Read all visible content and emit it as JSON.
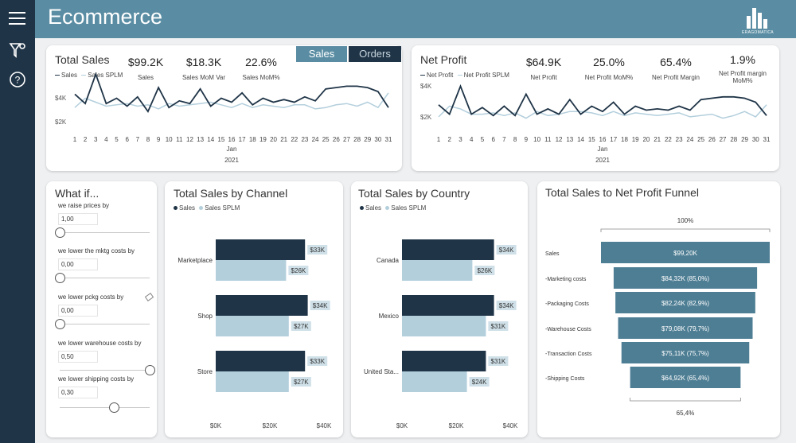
{
  "header": {
    "title": "Ecommerce",
    "logo_text": "ERAGOMATICA"
  },
  "sidebar": {
    "icons": [
      "menu-icon",
      "filter-icon",
      "help-icon"
    ]
  },
  "toggle": {
    "sales_label": "Sales",
    "orders_label": "Orders"
  },
  "total_sales": {
    "title": "Total Sales",
    "legend": [
      "Sales",
      "Sales SPLM"
    ],
    "kpis": [
      {
        "value": "$99.2K",
        "label": "Sales"
      },
      {
        "value": "$18.3K",
        "label": "Sales MoM Var"
      },
      {
        "value": "22.6%",
        "label": "Sales MoM%"
      }
    ],
    "y_ticks": [
      "$4K",
      "$2K"
    ],
    "x_month": "Jan",
    "x_year": "2021"
  },
  "net_profit": {
    "title": "Net Profit",
    "legend": [
      "Net Profit",
      "Net Profit SPLM"
    ],
    "kpis": [
      {
        "value": "$64.9K",
        "label": "Net Profit"
      },
      {
        "value": "25.0%",
        "label": "Net Profit MoM%"
      },
      {
        "value": "65.4%",
        "label": "Net Profit Margin"
      },
      {
        "value": "1.9%",
        "label": "Net Profit margin MoM%"
      }
    ],
    "y_ticks": [
      "$4K",
      "$2K"
    ],
    "x_month": "Jan",
    "x_year": "2021"
  },
  "what_if": {
    "title": "What if...",
    "sliders": [
      {
        "label": "we raise prices by",
        "value": "1,00",
        "level": 0
      },
      {
        "label": "we lower the mktg costs by",
        "value": "0,00",
        "level": 0
      },
      {
        "label": "we lower pckg costs by",
        "value": "0,00",
        "level": 0
      },
      {
        "label": "we lower warehouse costs by",
        "value": "0,50",
        "level": 1
      },
      {
        "label": "we lower shipping costs by",
        "value": "0,30",
        "level": 0.6
      }
    ]
  },
  "channel_chart": {
    "title": "Total Sales by Channel",
    "legend": [
      "Sales",
      "Sales SPLM"
    ],
    "x_ticks": [
      "$0K",
      "$20K",
      "$40K"
    ]
  },
  "country_chart": {
    "title": "Total Sales by Country",
    "legend": [
      "Sales",
      "Sales SPLM"
    ],
    "x_ticks": [
      "$0K",
      "$20K",
      "$40K"
    ]
  },
  "funnel": {
    "title": "Total Sales to Net Profit Funnel",
    "top_pct": "100%",
    "bottom_pct": "65,4%"
  },
  "colors": {
    "dark": "#1f3447",
    "light": "#b3cfdc",
    "accent": "#5a8da3",
    "funnel": "#4e7e94"
  },
  "chart_data": [
    {
      "type": "line",
      "title": "Total Sales",
      "x": [
        1,
        2,
        3,
        4,
        5,
        6,
        7,
        8,
        9,
        10,
        11,
        12,
        13,
        14,
        15,
        16,
        17,
        18,
        19,
        20,
        21,
        22,
        23,
        24,
        25,
        26,
        27,
        28,
        29,
        30,
        31
      ],
      "xlabel": "Jan 2021",
      "ylim": [
        1000,
        5000
      ],
      "series": [
        {
          "name": "Sales",
          "values": [
            3600,
            2900,
            5100,
            2900,
            3300,
            2700,
            3400,
            2300,
            4100,
            2600,
            3100,
            2900,
            4000,
            2700,
            3300,
            3000,
            3700,
            2800,
            3300,
            3000,
            3200,
            3000,
            3400,
            3100,
            4000,
            4100,
            4200,
            4200,
            4100,
            3800,
            2600
          ]
        },
        {
          "name": "Sales SPLM",
          "values": [
            2600,
            3300,
            3000,
            2700,
            2800,
            2900,
            2700,
            2800,
            2500,
            2900,
            2700,
            2800,
            2900,
            3000,
            2800,
            2600,
            2900,
            2600,
            2800,
            2700,
            2600,
            2800,
            2800,
            2500,
            2600,
            2800,
            2900,
            2700,
            3000,
            2600,
            3700
          ]
        }
      ]
    },
    {
      "type": "line",
      "title": "Net Profit",
      "x": [
        1,
        2,
        3,
        4,
        5,
        6,
        7,
        8,
        9,
        10,
        11,
        12,
        13,
        14,
        15,
        16,
        17,
        18,
        19,
        20,
        21,
        22,
        23,
        24,
        25,
        26,
        27,
        28,
        29,
        30,
        31
      ],
      "xlabel": "Jan 2021",
      "ylim": [
        500,
        4500
      ],
      "series": [
        {
          "name": "Net Profit",
          "values": [
            2300,
            1600,
            3700,
            1600,
            2100,
            1500,
            2200,
            1500,
            3100,
            1600,
            2000,
            1600,
            2700,
            1600,
            2200,
            1800,
            2500,
            1600,
            2200,
            1900,
            2000,
            1900,
            2200,
            1900,
            2700,
            2800,
            2900,
            2900,
            2800,
            2500,
            1500
          ]
        },
        {
          "name": "Net Profit SPLM",
          "values": [
            1400,
            2200,
            2000,
            1600,
            1600,
            1700,
            1500,
            1700,
            1300,
            1800,
            1500,
            1600,
            1800,
            1800,
            1700,
            1500,
            1800,
            1500,
            1700,
            1600,
            1500,
            1600,
            1700,
            1400,
            1500,
            1600,
            1300,
            1500,
            1800,
            1400,
            2300
          ]
        }
      ]
    },
    {
      "type": "bar",
      "title": "Total Sales by Channel",
      "categories": [
        "Marketplace",
        "Shop",
        "Store"
      ],
      "xlim": [
        0,
        40
      ],
      "series": [
        {
          "name": "Sales",
          "values": [
            33,
            34,
            33
          ],
          "labels": [
            "$33K",
            "$34K",
            "$33K"
          ]
        },
        {
          "name": "Sales SPLM",
          "values": [
            26,
            27,
            27
          ],
          "labels": [
            "$26K",
            "$27K",
            "$27K"
          ]
        }
      ]
    },
    {
      "type": "bar",
      "title": "Total Sales by Country",
      "categories": [
        "Canada",
        "Mexico",
        "United Sta..."
      ],
      "xlim": [
        0,
        40
      ],
      "series": [
        {
          "name": "Sales",
          "values": [
            34,
            34,
            31
          ],
          "labels": [
            "$34K",
            "$34K",
            "$31K"
          ]
        },
        {
          "name": "Sales SPLM",
          "values": [
            26,
            31,
            24
          ],
          "labels": [
            "$26K",
            "$31K",
            "$24K"
          ]
        }
      ]
    },
    {
      "type": "bar",
      "title": "Total Sales to Net Profit Funnel",
      "categories": [
        "Sales",
        "-Marketing costs",
        "-Packaging Costs",
        "-Warehouse Costs",
        "-Transaction Costs",
        "-Shipping Costs"
      ],
      "values": [
        99.2,
        84.32,
        82.24,
        79.08,
        75.11,
        64.92
      ],
      "labels": [
        "$99,20K",
        "$84,32K (85,0%)",
        "$82,24K (82,9%)",
        "$79,08K (79,7%)",
        "$75,11K (75,7%)",
        "$64,92K (65,4%)"
      ]
    }
  ]
}
